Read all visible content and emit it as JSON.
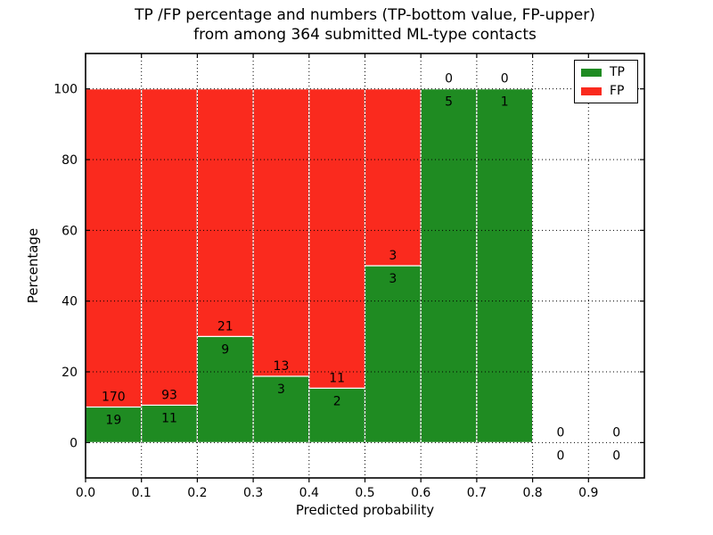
{
  "figure": {
    "title_line1": "TP /FP percentage and numbers (TP-bottom value, FP-upper)",
    "title_line2": "from among 364 submitted ML-type contacts",
    "xlabel": "Predicted probability",
    "ylabel": "Percentage"
  },
  "legend": {
    "position": "upper right",
    "entries": [
      {
        "label": "TP",
        "color": "#1f8b22"
      },
      {
        "label": "FP",
        "color": "#fa2a1e"
      }
    ]
  },
  "chart_data": {
    "type": "bar",
    "stacked": true,
    "normalized": "percentage",
    "title": "TP /FP percentage and numbers (TP-bottom value, FP-upper)\nfrom among 364 submitted ML-type contacts",
    "xlabel": "Predicted probability",
    "ylabel": "Percentage",
    "total_contacts": 364,
    "bin_width": 0.1,
    "x_bin_start": [
      0.0,
      0.1,
      0.2,
      0.3,
      0.4,
      0.5,
      0.6,
      0.7,
      0.8,
      0.9
    ],
    "series": [
      {
        "name": "TP",
        "color": "#1f8b22",
        "counts": [
          19,
          11,
          9,
          3,
          2,
          3,
          5,
          1,
          0,
          0
        ]
      },
      {
        "name": "FP",
        "color": "#fa2a1e",
        "counts": [
          170,
          93,
          21,
          13,
          11,
          3,
          0,
          0,
          0,
          0
        ]
      }
    ],
    "tp_percent": [
      10.1,
      10.6,
      30.0,
      18.8,
      15.4,
      50.0,
      100.0,
      100.0,
      0.0,
      0.0
    ],
    "xticks": [
      "0.0",
      "0.1",
      "0.2",
      "0.3",
      "0.4",
      "0.5",
      "0.6",
      "0.7",
      "0.8",
      "0.9"
    ],
    "yticks": [
      0,
      20,
      40,
      60,
      80,
      100
    ],
    "xlim": [
      0.0,
      1.0
    ],
    "ylim": [
      -10,
      110
    ],
    "grid": true,
    "grid_style": "dotted",
    "bar_edge_color": "#ffffff",
    "legend_position": "upper right"
  }
}
